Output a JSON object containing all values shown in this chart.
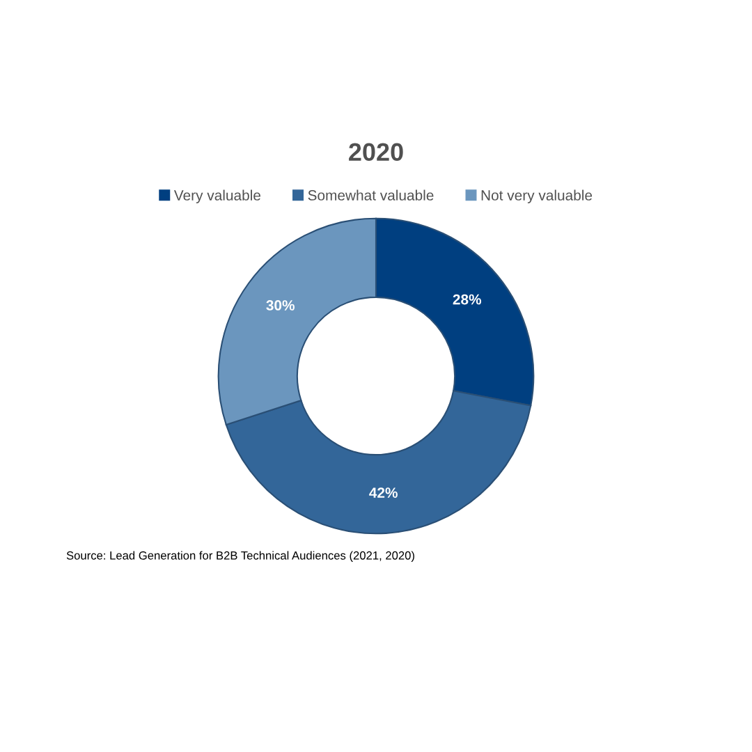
{
  "chart_data": {
    "type": "donut",
    "title": "2020",
    "categories": [
      "Very valuable",
      "Somewhat valuable",
      "Not very valuable"
    ],
    "values": [
      28,
      42,
      30
    ],
    "colors": [
      "#003f80",
      "#336699",
      "#6b96be"
    ],
    "value_labels": [
      "28%",
      "42%",
      "30%"
    ],
    "legend": "top",
    "annotations": [
      "Source: Lead Generation for B2B Technical Audiences (2021, 2020)"
    ]
  }
}
